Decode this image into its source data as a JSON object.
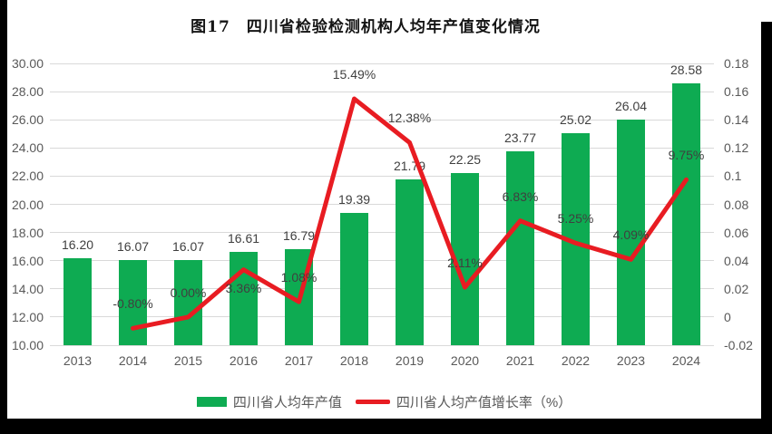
{
  "title": "图17　四川省检验检测机构人均年产值变化情况",
  "legend": {
    "bar_label": "四川省人均年产值",
    "line_label": "四川省人均产值增长率（%）"
  },
  "colors": {
    "bar": "#0eab52",
    "line": "#e81c22",
    "grid": "#d9d9d9",
    "axis_text": "#595959",
    "label_text": "#3f3f3f",
    "panel_bg": "#ffffff",
    "page_bg": "#000000"
  },
  "chart_data": {
    "type": "combo (bar + line)",
    "title": "图17　四川省检验检测机构人均年产值变化情况",
    "categories": [
      "2013",
      "2014",
      "2015",
      "2016",
      "2017",
      "2018",
      "2019",
      "2020",
      "2021",
      "2022",
      "2023",
      "2024"
    ],
    "series": [
      {
        "name": "四川省人均年产值",
        "type": "bar",
        "axis": "left",
        "values": [
          16.2,
          16.07,
          16.07,
          16.61,
          16.79,
          19.39,
          21.79,
          22.25,
          23.77,
          25.02,
          26.04,
          28.58
        ],
        "data_labels": [
          "16.20",
          "16.07",
          "16.07",
          "16.61",
          "16.79",
          "19.39",
          "21.79",
          "22.25",
          "23.77",
          "25.02",
          "26.04",
          "28.58"
        ]
      },
      {
        "name": "四川省人均产值增长率（%）",
        "type": "line",
        "axis": "right",
        "values": [
          null,
          -0.008,
          0.0,
          0.0336,
          0.0108,
          0.1549,
          0.1238,
          0.0211,
          0.0683,
          0.0525,
          0.0409,
          0.0975
        ],
        "data_labels": [
          "",
          "-0.80%",
          "0.00%",
          "3.36%",
          "1.08%",
          "15.49%",
          "12.38%",
          "2.11%",
          "6.83%",
          "5.25%",
          "4.09%",
          "9.75%"
        ]
      }
    ],
    "left_axis": {
      "min": 10,
      "max": 30,
      "step": 2,
      "tick_labels": [
        "10.00",
        "12.00",
        "14.00",
        "16.00",
        "18.00",
        "20.00",
        "22.00",
        "24.00",
        "26.00",
        "28.00",
        "30.00"
      ]
    },
    "right_axis": {
      "min": -0.02,
      "max": 0.18,
      "step": 0.02,
      "tick_labels": [
        "-0.02",
        "0",
        "0.02",
        "0.04",
        "0.06",
        "0.08",
        "0.1",
        "0.12",
        "0.14",
        "0.16",
        "0.18"
      ]
    },
    "grid": true,
    "legend_position": "bottom"
  }
}
